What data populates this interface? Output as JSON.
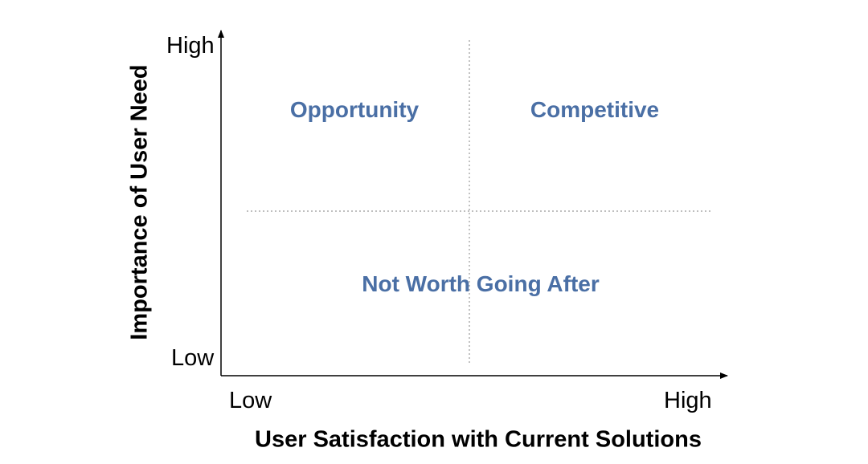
{
  "colors": {
    "quadrant_label": "#4a6fa5",
    "axis": "#000000",
    "divider": "#999999"
  },
  "y_axis": {
    "title": "Importance of User Need",
    "high_label": "High",
    "low_label": "Low"
  },
  "x_axis": {
    "title": "User Satisfaction with Current Solutions",
    "low_label": "Low",
    "high_label": "High"
  },
  "quadrants": {
    "top_left": "Opportunity",
    "top_right": "Competitive",
    "bottom": "Not Worth Going After"
  }
}
